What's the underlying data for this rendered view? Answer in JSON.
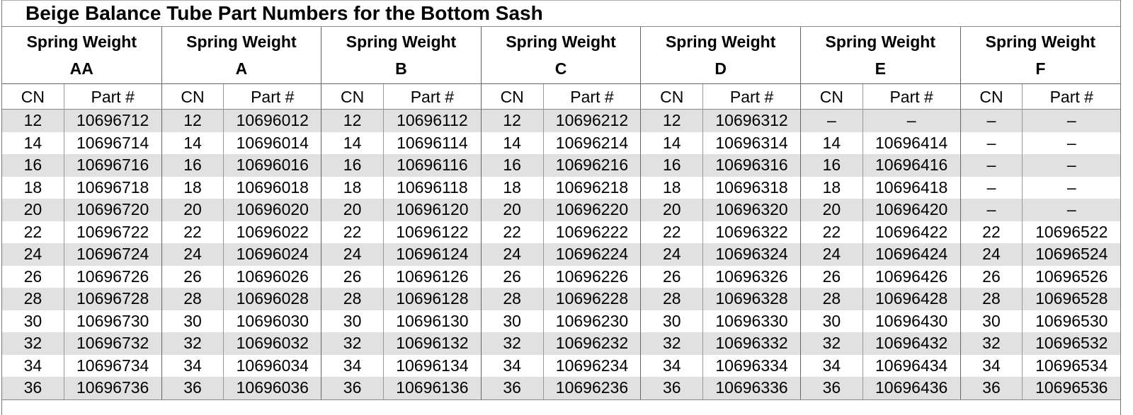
{
  "title": "Beige Balance Tube Part Numbers for the Bottom Sash",
  "table": {
    "group_header_prefix": "Spring Weight",
    "cn_header": "CN",
    "part_header": "Part #",
    "empty_marker": "–",
    "row_count": 13,
    "groups": [
      {
        "letter": "AA",
        "cn": [
          "12",
          "14",
          "16",
          "18",
          "20",
          "22",
          "24",
          "26",
          "28",
          "30",
          "32",
          "34",
          "36"
        ],
        "part": [
          "10696712",
          "10696714",
          "10696716",
          "10696718",
          "10696720",
          "10696722",
          "10696724",
          "10696726",
          "10696728",
          "10696730",
          "10696732",
          "10696734",
          "10696736"
        ]
      },
      {
        "letter": "A",
        "cn": [
          "12",
          "14",
          "16",
          "18",
          "20",
          "22",
          "24",
          "26",
          "28",
          "30",
          "32",
          "34",
          "36"
        ],
        "part": [
          "10696012",
          "10696014",
          "10696016",
          "10696018",
          "10696020",
          "10696022",
          "10696024",
          "10696026",
          "10696028",
          "10696030",
          "10696032",
          "10696034",
          "10696036"
        ]
      },
      {
        "letter": "B",
        "cn": [
          "12",
          "14",
          "16",
          "18",
          "20",
          "22",
          "24",
          "26",
          "28",
          "30",
          "32",
          "34",
          "36"
        ],
        "part": [
          "10696112",
          "10696114",
          "10696116",
          "10696118",
          "10696120",
          "10696122",
          "10696124",
          "10696126",
          "10696128",
          "10696130",
          "10696132",
          "10696134",
          "10696136"
        ]
      },
      {
        "letter": "C",
        "cn": [
          "12",
          "14",
          "16",
          "18",
          "20",
          "22",
          "24",
          "26",
          "28",
          "30",
          "32",
          "34",
          "36"
        ],
        "part": [
          "10696212",
          "10696214",
          "10696216",
          "10696218",
          "10696220",
          "10696222",
          "10696224",
          "10696226",
          "10696228",
          "10696230",
          "10696232",
          "10696234",
          "10696236"
        ]
      },
      {
        "letter": "D",
        "cn": [
          "12",
          "14",
          "16",
          "18",
          "20",
          "22",
          "24",
          "26",
          "28",
          "30",
          "32",
          "34",
          "36"
        ],
        "part": [
          "10696312",
          "10696314",
          "10696316",
          "10696318",
          "10696320",
          "10696322",
          "10696324",
          "10696326",
          "10696328",
          "10696330",
          "10696332",
          "10696334",
          "10696336"
        ]
      },
      {
        "letter": "E",
        "cn": [
          "–",
          "14",
          "16",
          "18",
          "20",
          "22",
          "24",
          "26",
          "28",
          "30",
          "32",
          "34",
          "36"
        ],
        "part": [
          "–",
          "10696414",
          "10696416",
          "10696418",
          "10696420",
          "10696422",
          "10696424",
          "10696426",
          "10696428",
          "10696430",
          "10696432",
          "10696434",
          "10696436"
        ]
      },
      {
        "letter": "F",
        "cn": [
          "–",
          "–",
          "–",
          "–",
          "–",
          "22",
          "24",
          "26",
          "28",
          "30",
          "32",
          "34",
          "36"
        ],
        "part": [
          "–",
          "–",
          "–",
          "–",
          "–",
          "10696522",
          "10696524",
          "10696526",
          "10696528",
          "10696530",
          "10696532",
          "10696534",
          "10696536"
        ]
      }
    ]
  },
  "colors": {
    "row_shade": "#e1e1e1",
    "border_dark": "#666666",
    "border_light": "#999999",
    "text": "#000000",
    "background": "#ffffff"
  }
}
